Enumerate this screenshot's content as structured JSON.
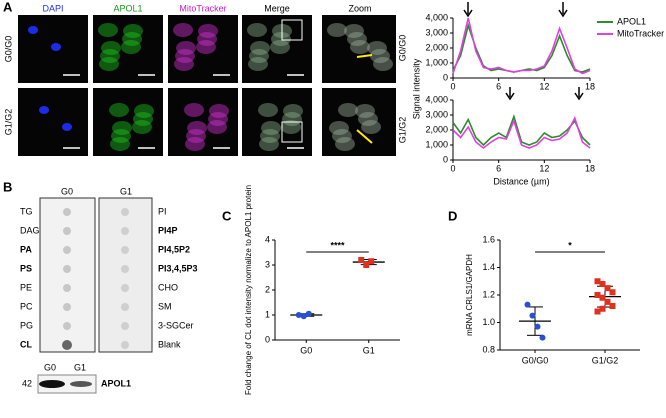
{
  "panels": {
    "a": "A",
    "b": "B",
    "c": "C",
    "d": "D"
  },
  "microscopy": {
    "columns": [
      "DAPI",
      "APOL1",
      "MitoTracker",
      "Merge",
      "Zoom"
    ],
    "rows": [
      "G0/G0",
      "G1/G2"
    ]
  },
  "dot_blot": {
    "groups": [
      "G0",
      "G1"
    ],
    "left_lipids": [
      "TG",
      "DAG",
      "PA",
      "PS",
      "PE",
      "PC",
      "PG",
      "CL"
    ],
    "right_lipids": [
      "PI",
      "PI4P",
      "PI4,5P2",
      "PI3,4,5P3",
      "CHO",
      "SM",
      "3-SGCer",
      "Blank"
    ],
    "western": {
      "lanes": [
        "G0",
        "G1"
      ],
      "marker": "42",
      "protein": "APOL1"
    }
  },
  "chart_data": [
    {
      "type": "line",
      "label": "G0/G0",
      "ylabel": "Signal intensity",
      "x": [
        0,
        1,
        2,
        3,
        4,
        5,
        6,
        7,
        8,
        9,
        10,
        11,
        12,
        13,
        14,
        15,
        16,
        17,
        18
      ],
      "series": [
        {
          "name": "APOL1",
          "color": "#2e8b2e",
          "values": [
            500,
            1500,
            3500,
            2000,
            800,
            500,
            600,
            500,
            400,
            500,
            600,
            500,
            700,
            1500,
            2800,
            1500,
            500,
            400,
            600
          ]
        },
        {
          "name": "MitoTracker",
          "color": "#e040e0",
          "values": [
            300,
            1800,
            4000,
            1800,
            700,
            600,
            700,
            500,
            400,
            500,
            500,
            600,
            800,
            1800,
            3300,
            2000,
            600,
            300,
            500
          ]
        }
      ],
      "xlim": [
        0,
        18
      ],
      "xticks": [
        0,
        6,
        12,
        18
      ],
      "ylim": [
        0,
        4000
      ],
      "yticks": [
        0,
        {
          "value": 1000,
          "label": "1,000"
        },
        {
          "value": 2000,
          "label": "2,000"
        },
        {
          "value": 3000,
          "label": "3,000"
        },
        {
          "value": 4000,
          "label": "4,000"
        }
      ],
      "legend": "right"
    },
    {
      "type": "line",
      "label": "G1/G2",
      "xlabel": "Distance (µm)",
      "x": [
        0,
        1,
        2,
        3,
        4,
        5,
        6,
        7,
        8,
        9,
        10,
        11,
        12,
        13,
        14,
        15,
        16,
        17,
        18
      ],
      "series": [
        {
          "name": "APOL1",
          "color": "#2e8b2e",
          "values": [
            2500,
            1800,
            2700,
            1500,
            1000,
            1500,
            1800,
            1500,
            2900,
            1200,
            1000,
            1200,
            1800,
            1500,
            1600,
            2000,
            2600,
            1500,
            1000
          ]
        },
        {
          "name": "MitoTracker",
          "color": "#e040e0",
          "values": [
            2000,
            1500,
            2200,
            1200,
            800,
            1200,
            1500,
            1400,
            2600,
            1000,
            800,
            1000,
            1500,
            1300,
            1400,
            1800,
            2800,
            1200,
            800
          ]
        }
      ],
      "xlim": [
        0,
        18
      ],
      "xticks": [
        0,
        6,
        12,
        18
      ],
      "ylim": [
        0,
        4000
      ],
      "yticks": [
        0,
        {
          "value": 1000,
          "label": "1,000"
        },
        {
          "value": 2000,
          "label": "2,000"
        },
        {
          "value": 3000,
          "label": "3,000"
        },
        {
          "value": 4000,
          "label": "4,000"
        }
      ]
    },
    {
      "type": "scatter",
      "ylabel": "Fold change of CL dot intensity normalize to APOL1 protein",
      "categories": [
        "G0",
        "G1"
      ],
      "colors": [
        "#2a4fd0",
        "#e03020"
      ],
      "values": [
        [
          1.0,
          0.95,
          1.05
        ],
        [
          3.2,
          3.0,
          3.15
        ]
      ],
      "ylim": [
        0,
        4
      ],
      "yticks": [
        0,
        1,
        2,
        3,
        4
      ],
      "annotation": "****"
    },
    {
      "type": "scatter",
      "ylabel": "mRNA CRLS1/GAPDH",
      "categories": [
        "G0/G0",
        "G1/G2"
      ],
      "colors": [
        "#2a4fd0",
        "#e03020"
      ],
      "values": [
        [
          1.13,
          1.05,
          0.97,
          0.89
        ],
        [
          1.3,
          1.28,
          1.25,
          1.22,
          1.2,
          1.18,
          1.15,
          1.12,
          1.08,
          1.1
        ]
      ],
      "ylim": [
        0.8,
        1.6
      ],
      "yticks": [
        0.8,
        {
          "value": 1.0,
          "label": "1.0"
        },
        1.2,
        1.4,
        1.6
      ],
      "annotation": "*"
    }
  ]
}
